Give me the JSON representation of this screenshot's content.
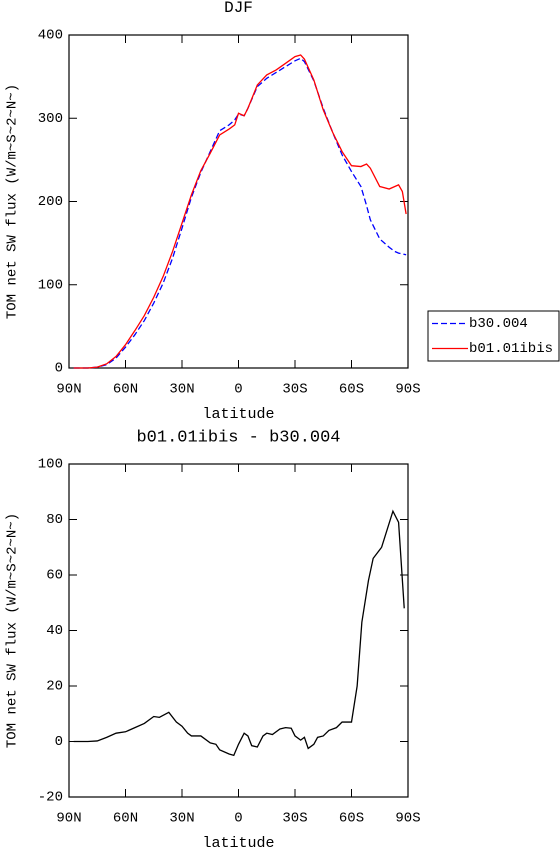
{
  "chart_data": [
    {
      "type": "line",
      "title": "DJF",
      "xlabel": "latitude",
      "ylabel": "TOM net SW flux (W/m~S~2~N~)",
      "x": [
        87.5,
        80,
        75,
        70,
        65,
        60,
        55,
        50,
        45,
        40,
        35,
        30,
        25,
        20,
        15,
        10,
        5,
        2,
        0,
        -3,
        -5,
        -10,
        -15,
        -20,
        -25,
        -30,
        -33,
        -35,
        -40,
        -45,
        -50,
        -55,
        -60,
        -65,
        -68,
        -70,
        -75,
        -80,
        -83,
        -85,
        -87,
        -89
      ],
      "series": [
        {
          "name": "b30.004",
          "color": "#0000ff",
          "dashed": true,
          "values": [
            0,
            0,
            1,
            4,
            12,
            25,
            40,
            57,
            78,
            102,
            132,
            168,
            205,
            235,
            260,
            285,
            292,
            298,
            305,
            303,
            312,
            338,
            348,
            355,
            362,
            369,
            372,
            368,
            345,
            312,
            283,
            256,
            236,
            218,
            195,
            178,
            155,
            145,
            140,
            138,
            137,
            136
          ]
        },
        {
          "name": "b01.01ibis",
          "color": "#ff0000",
          "dashed": false,
          "values": [
            0,
            0,
            1,
            5,
            14,
            28,
            45,
            63,
            85,
            110,
            140,
            174,
            208,
            237,
            258,
            280,
            287,
            292,
            306,
            303,
            312,
            340,
            352,
            358,
            366,
            374,
            376,
            371,
            346,
            310,
            283,
            260,
            243,
            242,
            245,
            240,
            218,
            215,
            218,
            220,
            212,
            185
          ]
        }
      ],
      "xlim": [
        90,
        -90
      ],
      "xticks": [
        {
          "value": 90,
          "label": "90N"
        },
        {
          "value": 60,
          "label": "60N"
        },
        {
          "value": 30,
          "label": "30N"
        },
        0,
        {
          "value": -30,
          "label": "30S"
        },
        {
          "value": -60,
          "label": "60S"
        },
        {
          "value": -90,
          "label": "90S"
        }
      ],
      "ylim": [
        0,
        400
      ],
      "yticks": [
        0,
        100,
        200,
        300,
        400
      ],
      "legend": "outside-right"
    },
    {
      "type": "line",
      "title": "b01.01ibis - b30.004",
      "xlabel": "latitude",
      "ylabel": "TOM net SW flux (W/m~S~2~N~)",
      "x": [
        87.5,
        80,
        75,
        70,
        65,
        60,
        55,
        50,
        45,
        42,
        37,
        33,
        30,
        27,
        25,
        20,
        15,
        12,
        10,
        5,
        2.5,
        0,
        -3,
        -5,
        -7,
        -10,
        -13,
        -15,
        -18,
        -22,
        -25,
        -28,
        -30,
        -33,
        -35,
        -37,
        -40,
        -42,
        -45,
        -48,
        -52,
        -55,
        -58,
        -60,
        -63,
        -65.5,
        -69,
        -71.5,
        -76,
        -82,
        -85,
        -88
      ],
      "values": [
        0,
        0,
        0.2,
        1.5,
        3,
        3.5,
        5,
        6.5,
        9,
        8.7,
        10.5,
        7,
        5.5,
        3,
        2,
        2,
        -0.5,
        -1,
        -3,
        -4.5,
        -5,
        -1,
        3,
        2,
        -1.5,
        -2,
        2,
        3,
        2.5,
        4.5,
        5,
        4.8,
        2,
        0.5,
        1.5,
        -2.5,
        -1,
        1.5,
        2,
        4,
        5,
        7,
        7,
        7,
        20,
        43,
        58,
        66,
        70,
        83,
        79,
        48
      ],
      "color": "#000000",
      "xlim": [
        90,
        -90
      ],
      "xticks": [
        {
          "value": 90,
          "label": "90N"
        },
        {
          "value": 60,
          "label": "60N"
        },
        {
          "value": 30,
          "label": "30N"
        },
        0,
        {
          "value": -30,
          "label": "30S"
        },
        {
          "value": -60,
          "label": "60S"
        },
        {
          "value": -90,
          "label": "90S"
        }
      ],
      "ylim": [
        -20,
        100
      ],
      "yticks": [
        -20,
        0,
        20,
        40,
        60,
        80,
        100
      ]
    }
  ]
}
